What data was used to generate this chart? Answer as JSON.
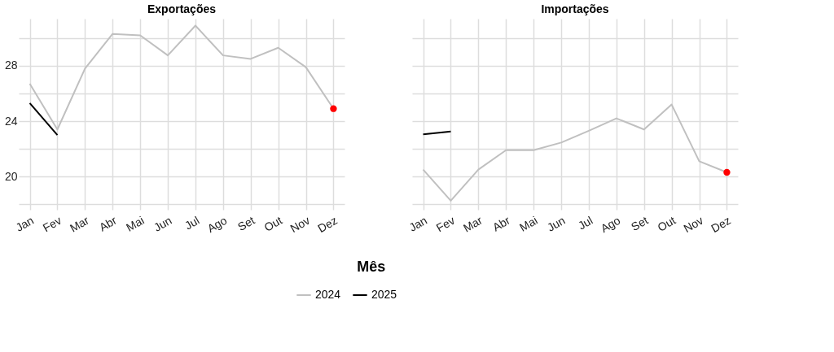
{
  "chart_data": [
    {
      "type": "line",
      "title": "Exportações",
      "xlabel": "Mês",
      "categories": [
        "Jan",
        "Fev",
        "Mar",
        "Abr",
        "Mai",
        "Jun",
        "Jul",
        "Ago",
        "Set",
        "Out",
        "Nov",
        "Dez"
      ],
      "ylim": [
        17.6,
        31.4
      ],
      "yticks": [
        {
          "value": 18,
          "label": null
        },
        20,
        {
          "value": 22,
          "label": null
        },
        24,
        {
          "value": 26,
          "label": null
        },
        28,
        {
          "value": 30,
          "label": null
        }
      ],
      "grid": true,
      "legend": "bottom",
      "line_style": "solid",
      "series": [
        {
          "name": "2024",
          "color": "#c0c0c0",
          "values": [
            26.7,
            23.4,
            27.8,
            30.3,
            30.2,
            28.75,
            30.9,
            28.75,
            28.5,
            29.3,
            27.9,
            24.9
          ]
        },
        {
          "name": "2025",
          "color": "#000000",
          "values": [
            25.3,
            23.0,
            null,
            null,
            null,
            null,
            null,
            null,
            null,
            null,
            null,
            null
          ]
        },
        {
          "type": "scatter",
          "marker": "circle",
          "color": "#ff0000",
          "values": [
            null,
            null,
            null,
            null,
            null,
            null,
            null,
            null,
            null,
            null,
            null,
            24.9
          ]
        }
      ]
    },
    {
      "type": "line",
      "title": "Importações",
      "categories": [
        "Jan",
        "Fev",
        "Mar",
        "Abr",
        "Mai",
        "Jun",
        "Jul",
        "Ago",
        "Set",
        "Out",
        "Nov",
        "Dez"
      ],
      "ylim": [
        17.6,
        31.4
      ],
      "yticks": [
        {
          "value": 18,
          "label": null
        },
        20,
        {
          "value": 22,
          "label": null
        },
        24,
        {
          "value": 26,
          "label": null
        },
        28,
        {
          "value": 30,
          "label": null
        }
      ],
      "grid": true,
      "tick_labels": "x",
      "legend": "bottom",
      "line_style": "solid",
      "series": [
        {
          "name": "2024",
          "color": "#c0c0c0",
          "values": [
            20.5,
            18.25,
            20.5,
            21.9,
            21.9,
            22.45,
            23.3,
            24.2,
            23.4,
            25.2,
            21.1,
            20.3
          ]
        },
        {
          "name": "2025",
          "color": "#000000",
          "values": [
            23.05,
            23.25,
            null,
            null,
            null,
            null,
            null,
            null,
            null,
            null,
            null,
            null
          ]
        },
        {
          "type": "scatter",
          "marker": "circle",
          "color": "#ff0000",
          "values": [
            null,
            null,
            null,
            null,
            null,
            null,
            null,
            null,
            null,
            null,
            null,
            20.3
          ]
        }
      ]
    }
  ]
}
